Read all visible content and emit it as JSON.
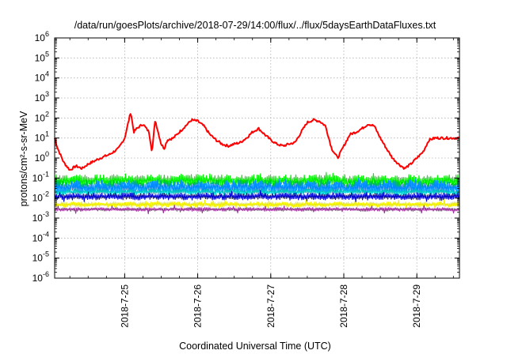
{
  "chart_data": {
    "type": "line",
    "title": "/data/run/goesPlots/archive/2018-07-29/14:00/flux/../flux/5daysEarthDataFluxes.txt",
    "xlabel": "Coordinated Universal Time (UTC)",
    "ylabel": "protons/cm²-s-sr-MeV",
    "y_scale": "log",
    "ylim": [
      1e-06,
      1000000.0
    ],
    "y_ticks": [
      {
        "base": "10",
        "exp": "-6"
      },
      {
        "base": "10",
        "exp": "-5"
      },
      {
        "base": "10",
        "exp": "-4"
      },
      {
        "base": "10",
        "exp": "-3"
      },
      {
        "base": "10",
        "exp": "-2"
      },
      {
        "base": "10",
        "exp": "-1"
      },
      {
        "base": "10",
        "exp": "0"
      },
      {
        "base": "10",
        "exp": "1"
      },
      {
        "base": "10",
        "exp": "2"
      },
      {
        "base": "10",
        "exp": "3"
      },
      {
        "base": "10",
        "exp": "4"
      },
      {
        "base": "10",
        "exp": "5"
      },
      {
        "base": "10",
        "exp": "6"
      }
    ],
    "xlim": [
      "2018-07-24T01:00",
      "2018-07-29T14:00"
    ],
    "x_ticks": [
      "2018-7-25",
      "2018-7-26",
      "2018-7-27",
      "2018-7-28",
      "2018-7-29"
    ],
    "grid": true,
    "series": [
      {
        "color": "#ff0000",
        "style": "line",
        "noise_decades": 0.06,
        "x": [
          "2018-07-24T01:00",
          "2018-07-24T02:00",
          "2018-07-24T04:00",
          "2018-07-24T06:00",
          "2018-07-24T08:00",
          "2018-07-24T10:00",
          "2018-07-24T12:00",
          "2018-07-24T14:00",
          "2018-07-24T16:00",
          "2018-07-24T19:00",
          "2018-07-24T22:00",
          "2018-07-25T00:00",
          "2018-07-25T02:00",
          "2018-07-25T03:00",
          "2018-07-25T04:00",
          "2018-07-25T06:00",
          "2018-07-25T08:00",
          "2018-07-25T09:00",
          "2018-07-25T10:00",
          "2018-07-25T12:00",
          "2018-07-25T13:00",
          "2018-07-25T14:00",
          "2018-07-25T16:00",
          "2018-07-25T18:00",
          "2018-07-25T20:00",
          "2018-07-25T22:00",
          "2018-07-26T00:00",
          "2018-07-26T02:00",
          "2018-07-26T04:00",
          "2018-07-26T06:00",
          "2018-07-26T08:00",
          "2018-07-26T10:00",
          "2018-07-26T12:00",
          "2018-07-26T14:00",
          "2018-07-26T16:00",
          "2018-07-26T18:00",
          "2018-07-26T20:00",
          "2018-07-26T22:00",
          "2018-07-27T00:00",
          "2018-07-27T02:00",
          "2018-07-27T04:00",
          "2018-07-27T06:00",
          "2018-07-27T08:00",
          "2018-07-27T10:00",
          "2018-07-27T12:00",
          "2018-07-27T14:00",
          "2018-07-27T16:00",
          "2018-07-27T18:00",
          "2018-07-27T20:00",
          "2018-07-27T22:00",
          "2018-07-28T00:00",
          "2018-07-28T02:00",
          "2018-07-28T04:00",
          "2018-07-28T06:00",
          "2018-07-28T08:00",
          "2018-07-28T10:00",
          "2018-07-28T12:00",
          "2018-07-28T14:00",
          "2018-07-28T16:00",
          "2018-07-28T18:00",
          "2018-07-28T20:00",
          "2018-07-28T22:00",
          "2018-07-29T00:00",
          "2018-07-29T02:00",
          "2018-07-29T04:00",
          "2018-07-29T06:00",
          "2018-07-29T08:00",
          "2018-07-29T10:00",
          "2018-07-29T12:00",
          "2018-07-29T14:00"
        ],
        "y": [
          10,
          3,
          0.6,
          0.25,
          0.4,
          0.3,
          0.5,
          0.7,
          1,
          1.5,
          3,
          10,
          200,
          20,
          30,
          50,
          20,
          2,
          80,
          5,
          3,
          8,
          10,
          20,
          40,
          80,
          70,
          40,
          15,
          8,
          5,
          4,
          5,
          6,
          10,
          20,
          30,
          15,
          8,
          5,
          4,
          5,
          6,
          20,
          60,
          80,
          70,
          40,
          3,
          1,
          4,
          15,
          20,
          30,
          50,
          40,
          10,
          3,
          1,
          0.5,
          0.3,
          0.5,
          1,
          2,
          8,
          10,
          10,
          10,
          10,
          10
        ]
      },
      {
        "color": "#00ee00",
        "style": "band",
        "x": [
          "2018-07-24T01:00",
          "2018-07-29T14:00"
        ],
        "low": [
          0.035,
          0.035
        ],
        "high": [
          0.15,
          0.15
        ]
      },
      {
        "color": "#0088ff",
        "style": "band",
        "x": [
          "2018-07-24T01:00",
          "2018-07-29T14:00"
        ],
        "low": [
          0.015,
          0.015
        ],
        "high": [
          0.08,
          0.08
        ]
      },
      {
        "color": "#00c8c8",
        "style": "band",
        "x": [
          "2018-07-24T01:00",
          "2018-07-29T14:00"
        ],
        "low": [
          0.015,
          0.015
        ],
        "high": [
          0.028,
          0.028
        ]
      },
      {
        "color": "#0000cc",
        "style": "band",
        "x": [
          "2018-07-24T01:00",
          "2018-07-29T14:00"
        ],
        "low": [
          0.008,
          0.008
        ],
        "high": [
          0.018,
          0.018
        ]
      },
      {
        "color": "#eeee00",
        "style": "band",
        "x": [
          "2018-07-24T01:00",
          "2018-07-29T14:00"
        ],
        "low": [
          0.0035,
          0.0035
        ],
        "high": [
          0.0065,
          0.0065
        ]
      },
      {
        "color": "#993399",
        "style": "band",
        "x": [
          "2018-07-24T01:00",
          "2018-07-29T14:00"
        ],
        "low": [
          0.0022,
          0.0022
        ],
        "high": [
          0.0034,
          0.0034
        ]
      }
    ]
  }
}
